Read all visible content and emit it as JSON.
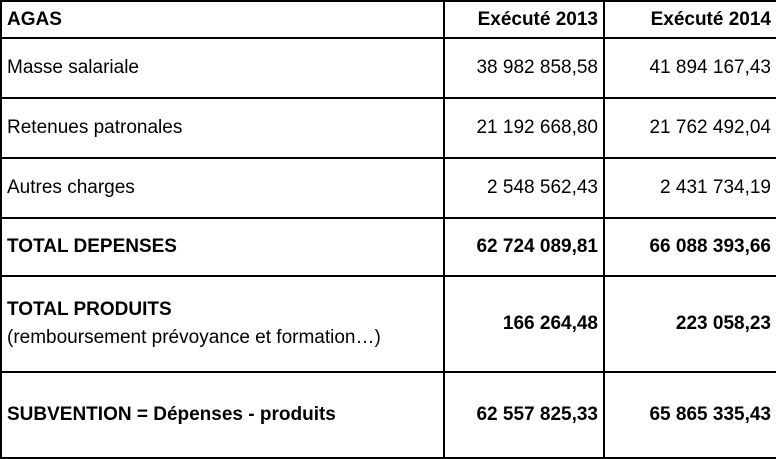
{
  "table": {
    "headers": [
      "AGAS",
      "Exécuté 2013",
      "Exécuté 2014"
    ],
    "rows": [
      {
        "label": "Masse salariale",
        "v2013": "38 982 858,58",
        "v2014": "41 894 167,43"
      },
      {
        "label": "Retenues patronales",
        "v2013": "21 192 668,80",
        "v2014": "21 762 492,04"
      },
      {
        "label": "Autres charges",
        "v2013": "2 548 562,43",
        "v2014": "2 431 734,19"
      },
      {
        "label": "TOTAL DEPENSES",
        "v2013": "62 724 089,81",
        "v2014": "66 088 393,66"
      },
      {
        "label": "TOTAL PRODUITS",
        "note": "(remboursement prévoyance et formation…)",
        "v2013": "166 264,48",
        "v2014": "223 058,23"
      },
      {
        "label": "SUBVENTION = Dépenses - produits",
        "v2013": "62 557 825,33",
        "v2014": "65 865 335,43"
      }
    ]
  }
}
